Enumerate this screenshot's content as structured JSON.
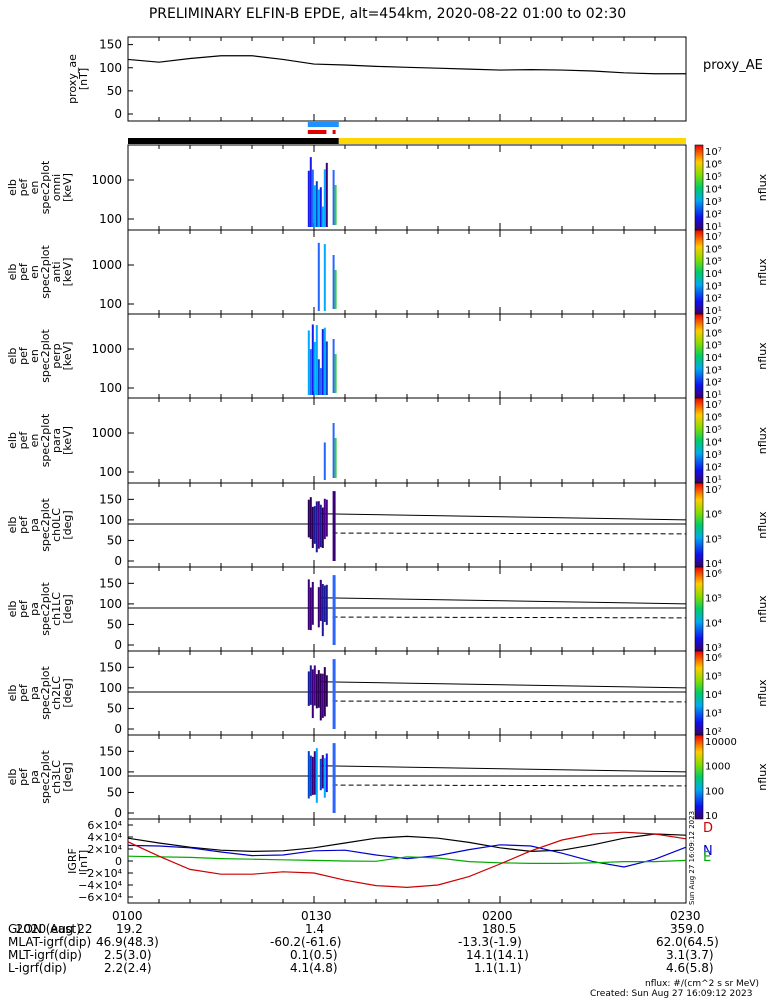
{
  "title": "PRELIMINARY ELFIN-B EPDE, alt=454km, 2020-08-22 01:00 to 02:30",
  "time_range": [
    "01:00",
    "02:30"
  ],
  "colors": {
    "plot_black": "#000000",
    "bar_day": "#ffd700",
    "bar_night": "#000000",
    "marker_blue": "#1e90ff",
    "marker_red": "#e00000",
    "grf_d": "#000000",
    "grf_n": "#0000cc",
    "grf_e": "#00aa00",
    "grf_h": "#cc0000"
  },
  "panels": [
    {
      "id": "proxy_ae",
      "ylabel": [
        "proxy_ae",
        "[nT]"
      ],
      "yticks": [
        "150",
        "100",
        "50",
        "0"
      ],
      "legend": "proxy_AE"
    },
    {
      "id": "omni",
      "ylabel": [
        "elb",
        "pef",
        "en",
        "spec2plot",
        "omni",
        "[keV]"
      ],
      "yticks": [
        "1000",
        "100"
      ],
      "colorbar": {
        "ticks": [
          "10⁷",
          "10⁶",
          "10⁵",
          "10⁴",
          "10³",
          "10²",
          "10¹"
        ],
        "label": "nflux"
      }
    },
    {
      "id": "anti",
      "ylabel": [
        "elb",
        "pef",
        "en",
        "spec2plot",
        "anti",
        "[keV]"
      ],
      "yticks": [
        "1000",
        "100"
      ],
      "colorbar": {
        "ticks": [
          "10⁷",
          "10⁶",
          "10⁵",
          "10⁴",
          "10³",
          "10²",
          "10¹"
        ],
        "label": "nflux"
      }
    },
    {
      "id": "perp",
      "ylabel": [
        "elb",
        "pef",
        "en",
        "spec2plot",
        "perp",
        "[keV]"
      ],
      "yticks": [
        "1000",
        "100"
      ],
      "colorbar": {
        "ticks": [
          "10⁷",
          "10⁶",
          "10⁵",
          "10⁴",
          "10³",
          "10²",
          "10¹"
        ],
        "label": "nflux"
      }
    },
    {
      "id": "para",
      "ylabel": [
        "elb",
        "pef",
        "en",
        "spec2plot",
        "para",
        "[keV]"
      ],
      "yticks": [
        "1000",
        "100"
      ],
      "colorbar": {
        "ticks": [
          "10⁷",
          "10⁶",
          "10⁵",
          "10⁴",
          "10³",
          "10²",
          "10¹"
        ],
        "label": "nflux"
      }
    },
    {
      "id": "ch0LC",
      "ylabel": [
        "elb",
        "pef",
        "pa",
        "spec2plot",
        "ch0LC",
        "[deg]"
      ],
      "yticks": [
        "150",
        "100",
        "50",
        "0"
      ],
      "colorbar": {
        "ticks": [
          "10⁷",
          "10⁶",
          "10⁵",
          "10⁴"
        ],
        "label": "nflux"
      }
    },
    {
      "id": "ch1LC",
      "ylabel": [
        "elb",
        "pef",
        "pa",
        "spec2plot",
        "ch1LC",
        "[deg]"
      ],
      "yticks": [
        "150",
        "100",
        "50",
        "0"
      ],
      "colorbar": {
        "ticks": [
          "10⁶",
          "10⁵",
          "10⁴",
          "10³"
        ],
        "label": "nflux"
      }
    },
    {
      "id": "ch2LC",
      "ylabel": [
        "elb",
        "pef",
        "pa",
        "spec2plot",
        "ch2LC",
        "[deg]"
      ],
      "yticks": [
        "150",
        "100",
        "50",
        "0"
      ],
      "colorbar": {
        "ticks": [
          "10⁶",
          "10⁵",
          "10⁴",
          "10³",
          "10²"
        ],
        "label": "nflux"
      }
    },
    {
      "id": "ch3LC",
      "ylabel": [
        "elb",
        "pef",
        "pa",
        "spec2plot",
        "ch3LC",
        "[deg]"
      ],
      "yticks": [
        "150",
        "100",
        "50",
        "0"
      ],
      "colorbar": {
        "ticks": [
          "10000",
          "1000",
          "100",
          "10"
        ],
        "label": "nflux"
      }
    },
    {
      "id": "igrf",
      "ylabel": [
        "IGRF",
        "[nT]"
      ],
      "yticks": [
        "6×10⁴",
        "4×10⁴",
        "2×10⁴",
        "0",
        "−2×10⁴",
        "−4×10⁴",
        "−6×10⁴"
      ],
      "legend": [
        "D",
        "N",
        "E"
      ]
    }
  ],
  "chart_data": [
    {
      "type": "line",
      "panel": "proxy_ae",
      "ylim": [
        0,
        160
      ],
      "x": [
        "01:00",
        "01:05",
        "01:10",
        "01:15",
        "01:20",
        "01:25",
        "01:30",
        "01:35",
        "01:40",
        "01:45",
        "01:50",
        "01:55",
        "02:00",
        "02:05",
        "02:10",
        "02:15",
        "02:20",
        "02:25",
        "02:30"
      ],
      "series": [
        {
          "name": "proxy_AE",
          "values": [
            118,
            112,
            120,
            126,
            126,
            118,
            108,
            106,
            103,
            101,
            99,
            97,
            95,
            96,
            95,
            93,
            89,
            87,
            87
          ]
        }
      ]
    },
    {
      "type": "line",
      "panel": "igrf",
      "ylim": [
        -60000,
        60000
      ],
      "x": [
        "01:00",
        "01:05",
        "01:10",
        "01:15",
        "01:20",
        "01:25",
        "01:30",
        "01:35",
        "01:40",
        "01:45",
        "01:50",
        "01:55",
        "02:00",
        "02:05",
        "02:10",
        "02:15",
        "02:20",
        "02:25",
        "02:30"
      ],
      "series": [
        {
          "name": "D",
          "values": [
            38000,
            30000,
            23000,
            18000,
            16000,
            17000,
            22000,
            30000,
            38000,
            41000,
            38000,
            31000,
            22000,
            16000,
            18000,
            27000,
            38000,
            45000,
            43000
          ]
        },
        {
          "name": "N",
          "values": [
            26000,
            25000,
            22000,
            15000,
            9000,
            10000,
            17000,
            18000,
            10000,
            4000,
            9000,
            19000,
            27000,
            25000,
            13000,
            -1000,
            -10000,
            3000,
            23000
          ]
        },
        {
          "name": "E",
          "values": [
            8000,
            7000,
            6000,
            4000,
            3000,
            2000,
            1000,
            0,
            -500,
            7000,
            5000,
            -1000,
            -3000,
            -4000,
            -4000,
            -3000,
            -1000,
            -1000,
            1000
          ]
        },
        {
          "name": "H",
          "values": [
            32000,
            8000,
            -14000,
            -22000,
            -22000,
            -18000,
            -20000,
            -32000,
            -41000,
            -44000,
            -40000,
            -26000,
            -5000,
            17000,
            35000,
            45000,
            48000,
            45000,
            37000
          ]
        }
      ]
    },
    {
      "type": "line",
      "panel": "pitch_angle_reference",
      "ylim": [
        0,
        180
      ],
      "x": [
        "01:31",
        "02:30"
      ],
      "series": [
        {
          "values": [
            115,
            100
          ]
        },
        {
          "values": [
            68,
            66
          ]
        },
        {
          "values": [
            90,
            90
          ]
        }
      ]
    }
  ],
  "state_bar": {
    "night_end": "01:34",
    "markers_blue": [
      [
        "01:29",
        "01:34"
      ]
    ],
    "markers_red": [
      [
        "01:29",
        "01:32"
      ],
      [
        "01:33",
        "01:33"
      ]
    ]
  },
  "footer": {
    "rows": [
      [
        "2020 Aug 22",
        "0100",
        "0130",
        "0200",
        "0230"
      ],
      [
        "GLON (east)",
        "19.2",
        "1.4",
        "180.5",
        "359.0"
      ],
      [
        "MLAT-igrf(dip)",
        "46.9(48.3)",
        "-60.2(-61.6)",
        "-13.3(-1.9)",
        "62.0(64.5)"
      ],
      [
        "MLT-igrf(dip)",
        "2.5(3.0)",
        "0.1(0.5)",
        "14.1(14.1)",
        "3.1(3.7)"
      ],
      [
        "L-igrf(dip)",
        "2.2(2.4)",
        "4.1(4.8)",
        "1.1(1.1)",
        "4.6(5.8)"
      ]
    ],
    "units": "nflux: #/(cm^2 s sr MeV)",
    "created": "Created: Sun Aug 27 16:09:12 2023",
    "side_stamp": "Sun Aug 27 16:09:12 2023"
  }
}
